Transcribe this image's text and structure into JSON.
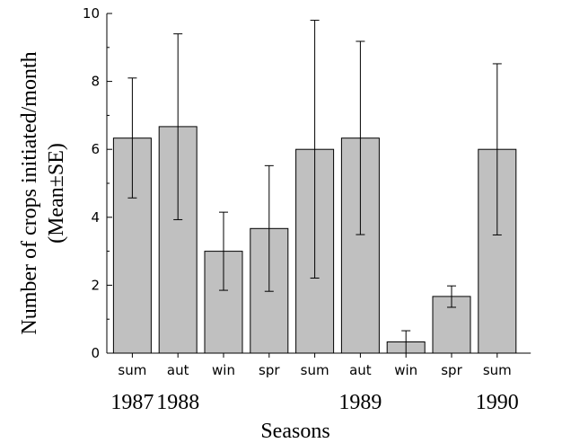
{
  "chart_data": {
    "type": "bar",
    "categories": [
      "sum",
      "aut",
      "win",
      "spr",
      "sum",
      "aut",
      "win",
      "spr",
      "sum"
    ],
    "values": [
      6.33,
      6.67,
      3.0,
      3.67,
      6.0,
      6.33,
      0.33,
      1.67,
      6.0
    ],
    "error_bars": {
      "upper": [
        8.1,
        9.4,
        4.15,
        5.52,
        9.8,
        9.18,
        0.66,
        1.98,
        8.52
      ],
      "lower": [
        4.57,
        3.93,
        1.85,
        1.82,
        2.21,
        3.49,
        0.0,
        1.35,
        3.48
      ]
    },
    "year_labels": [
      {
        "label": "1987",
        "category_index": 0
      },
      {
        "label": "1988",
        "category_index": 1
      },
      {
        "label": "1989",
        "category_index": 5
      },
      {
        "label": "1990",
        "category_index": 8
      }
    ],
    "xlabel": "Seasons",
    "ylabel": "Number of crops initiated/month",
    "ylabel_line2": "(Mean±SE)",
    "ylim": [
      0,
      10
    ],
    "yticks": [
      0,
      2,
      4,
      6,
      8,
      10
    ],
    "bar_color": "#c0c0c0",
    "legend": "none",
    "grid": false
  }
}
